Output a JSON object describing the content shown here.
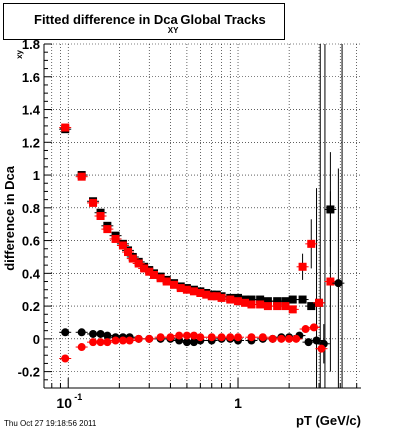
{
  "title": {
    "part1": "Fitted difference in Dca",
    "subscript": "XY",
    "part2": "Global Tracks"
  },
  "footer": "Thu Oct 27 19:18:56 2011",
  "chart_data": {
    "type": "scatter",
    "xlabel": "pT (GeV/c)",
    "ylabel_main": "difference in Dca",
    "ylabel_sub": "xy",
    "xscale": "log",
    "xlim": [
      0.072,
      5.3
    ],
    "ylim": [
      -0.3,
      1.8
    ],
    "grid": true,
    "xticks": [
      {
        "v": 0.1,
        "base": "10",
        "exp": "-1"
      },
      {
        "v": 1,
        "base": "1",
        "exp": ""
      }
    ],
    "yticks": [
      -0.2,
      0,
      0.2,
      0.4,
      0.6,
      0.8,
      1,
      1.2,
      1.4,
      1.6,
      1.8
    ],
    "ytick_labels": [
      "-0.2",
      "0",
      "0.2",
      "0.4",
      "0.6",
      "0.8",
      "1",
      "1.2",
      "1.4",
      "1.6",
      "1.8"
    ],
    "colors": {
      "black": "#000000",
      "red": "#ff0000"
    },
    "series": [
      {
        "color": "black",
        "marker": "square",
        "points": [
          [
            0.096,
            1.28
          ],
          [
            0.12,
            1.0
          ],
          [
            0.14,
            0.84
          ],
          [
            0.155,
            0.77
          ],
          [
            0.17,
            0.69
          ],
          [
            0.19,
            0.63
          ],
          [
            0.21,
            0.58
          ],
          [
            0.225,
            0.54
          ],
          [
            0.24,
            0.5
          ],
          [
            0.26,
            0.47
          ],
          [
            0.28,
            0.44
          ],
          [
            0.3,
            0.42
          ],
          [
            0.32,
            0.4
          ],
          [
            0.35,
            0.38
          ],
          [
            0.38,
            0.36
          ],
          [
            0.42,
            0.34
          ],
          [
            0.46,
            0.32
          ],
          [
            0.5,
            0.31
          ],
          [
            0.55,
            0.3
          ],
          [
            0.6,
            0.29
          ],
          [
            0.65,
            0.28
          ],
          [
            0.7,
            0.27
          ],
          [
            0.75,
            0.27
          ],
          [
            0.8,
            0.26
          ],
          [
            0.9,
            0.25
          ],
          [
            1.0,
            0.25
          ],
          [
            1.1,
            0.24
          ],
          [
            1.2,
            0.24
          ],
          [
            1.35,
            0.24
          ],
          [
            1.5,
            0.23
          ],
          [
            1.7,
            0.23
          ],
          [
            1.9,
            0.23
          ],
          [
            2.1,
            0.24
          ],
          [
            2.4,
            0.24
          ],
          [
            2.7,
            0.2
          ],
          [
            3.0,
            0.22
          ],
          [
            3.5,
            0.79
          ]
        ]
      },
      {
        "color": "red",
        "marker": "square",
        "points": [
          [
            0.096,
            1.29
          ],
          [
            0.12,
            0.99
          ],
          [
            0.14,
            0.83
          ],
          [
            0.155,
            0.75
          ],
          [
            0.17,
            0.67
          ],
          [
            0.19,
            0.61
          ],
          [
            0.21,
            0.57
          ],
          [
            0.225,
            0.53
          ],
          [
            0.24,
            0.49
          ],
          [
            0.26,
            0.46
          ],
          [
            0.28,
            0.43
          ],
          [
            0.3,
            0.41
          ],
          [
            0.32,
            0.39
          ],
          [
            0.35,
            0.37
          ],
          [
            0.38,
            0.35
          ],
          [
            0.42,
            0.33
          ],
          [
            0.46,
            0.31
          ],
          [
            0.5,
            0.3
          ],
          [
            0.55,
            0.29
          ],
          [
            0.6,
            0.28
          ],
          [
            0.65,
            0.27
          ],
          [
            0.7,
            0.26
          ],
          [
            0.75,
            0.26
          ],
          [
            0.8,
            0.25
          ],
          [
            0.9,
            0.24
          ],
          [
            1.0,
            0.23
          ],
          [
            1.1,
            0.22
          ],
          [
            1.2,
            0.21
          ],
          [
            1.35,
            0.21
          ],
          [
            1.5,
            0.2
          ],
          [
            1.7,
            0.2
          ],
          [
            1.9,
            0.2
          ],
          [
            2.1,
            0.18
          ],
          [
            2.4,
            0.44
          ],
          [
            2.7,
            0.58
          ],
          [
            3.0,
            0.22
          ],
          [
            3.5,
            0.35
          ]
        ]
      },
      {
        "color": "black",
        "marker": "circle",
        "points": [
          [
            0.096,
            0.04
          ],
          [
            0.12,
            0.04
          ],
          [
            0.14,
            0.03
          ],
          [
            0.155,
            0.03
          ],
          [
            0.17,
            0.02
          ],
          [
            0.19,
            0.01
          ],
          [
            0.21,
            0.01
          ],
          [
            0.23,
            0.01
          ],
          [
            0.26,
            0.0
          ],
          [
            0.3,
            0.0
          ],
          [
            0.35,
            0.0
          ],
          [
            0.4,
            0.0
          ],
          [
            0.45,
            -0.01
          ],
          [
            0.5,
            -0.02
          ],
          [
            0.55,
            -0.02
          ],
          [
            0.6,
            -0.01
          ],
          [
            0.7,
            -0.01
          ],
          [
            0.8,
            0.0
          ],
          [
            0.9,
            0.0
          ],
          [
            1.0,
            -0.01
          ],
          [
            1.2,
            -0.01
          ],
          [
            1.4,
            0.0
          ],
          [
            1.6,
            0.0
          ],
          [
            1.8,
            0.01
          ],
          [
            2.0,
            0.01
          ],
          [
            2.3,
            0.02
          ],
          [
            2.6,
            -0.02
          ],
          [
            2.9,
            -0.01
          ],
          [
            3.2,
            -0.03
          ],
          [
            3.9,
            0.34
          ]
        ]
      },
      {
        "color": "red",
        "marker": "circle",
        "points": [
          [
            0.096,
            -0.12
          ],
          [
            0.12,
            -0.05
          ],
          [
            0.14,
            -0.02
          ],
          [
            0.155,
            -0.02
          ],
          [
            0.17,
            -0.02
          ],
          [
            0.19,
            -0.01
          ],
          [
            0.21,
            -0.01
          ],
          [
            0.23,
            -0.01
          ],
          [
            0.26,
            0.0
          ],
          [
            0.3,
            0.0
          ],
          [
            0.35,
            0.01
          ],
          [
            0.4,
            0.01
          ],
          [
            0.45,
            0.02
          ],
          [
            0.5,
            0.02
          ],
          [
            0.55,
            0.02
          ],
          [
            0.6,
            0.01
          ],
          [
            0.7,
            0.01
          ],
          [
            0.8,
            0.01
          ],
          [
            0.9,
            0.01
          ],
          [
            1.0,
            0.01
          ],
          [
            1.2,
            0.01
          ],
          [
            1.4,
            0.01
          ],
          [
            1.6,
            0.0
          ],
          [
            1.8,
            0.0
          ],
          [
            2.0,
            0.0
          ],
          [
            2.2,
            0.0
          ],
          [
            2.5,
            0.06
          ],
          [
            2.8,
            0.07
          ],
          [
            3.1,
            -0.06
          ]
        ]
      }
    ],
    "error_bars": [
      {
        "x": 2.9,
        "y": 0.22,
        "err": 0.7
      },
      {
        "x": 3.5,
        "y": 0.79,
        "err": 0.35
      },
      {
        "x": 3.5,
        "y": 0.35,
        "err": 0.55
      },
      {
        "x": 3.9,
        "y": 0.34,
        "err": 0.7
      },
      {
        "x": 3.2,
        "y": -0.03,
        "err": 0.12
      },
      {
        "x": 2.4,
        "y": 0.44,
        "err": 0.08
      },
      {
        "x": 2.7,
        "y": 0.58,
        "err": 0.15
      }
    ],
    "vertical_lines": [
      3.05,
      3.25,
      4.1
    ]
  }
}
